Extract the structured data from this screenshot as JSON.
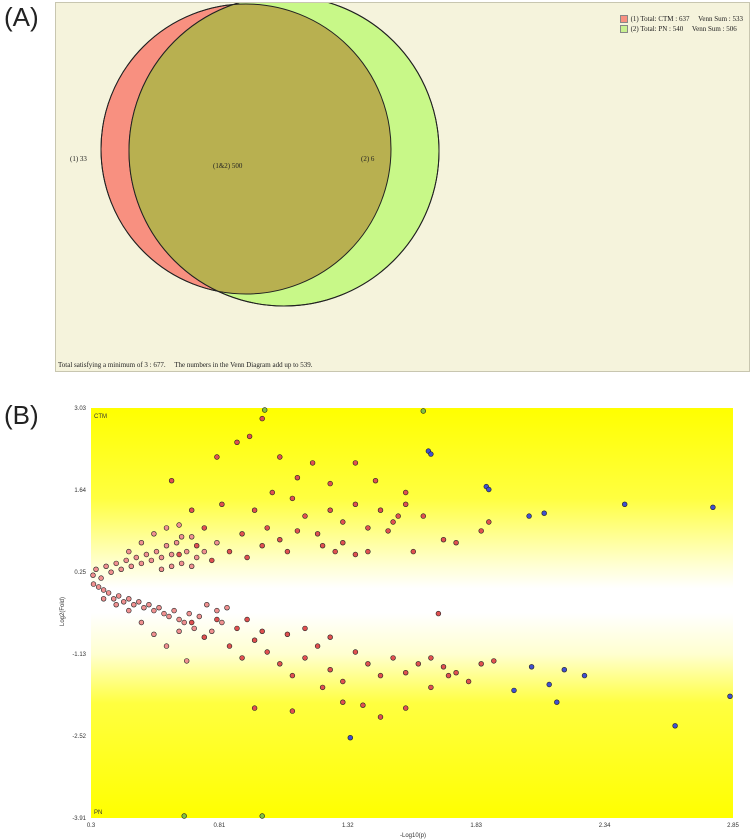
{
  "panel_a": {
    "label": "(A)",
    "legend": [
      {
        "text": "(1) Total: CTM : 637     Venn Sum : 533",
        "color": "#f89080"
      },
      {
        "text": "(2) Total: PN : 540     Venn Sum : 506",
        "color": "#c8f090"
      }
    ],
    "region_labels": {
      "only_1": "(1) 33",
      "both": "(1&2) 500",
      "only_2": "(2) 6"
    },
    "footer": "Total satisfying a minimum of 3 : 677.     The numbers in the Venn Diagram add up to 539.",
    "colors": {
      "set1": "#f89080",
      "set2": "#c8f888",
      "overlap": "#b8b050",
      "background": "#f5f3dc"
    }
  },
  "panel_b": {
    "label": "(B)",
    "top_tag": "CTM",
    "bottom_tag": "PN",
    "colors": {
      "band": "#ffff00",
      "point_red": "#e05050",
      "point_pink": "#f09090",
      "point_blue": "#4050d0",
      "point_green": "#80c040"
    }
  },
  "chart_data": {
    "type": "scatter",
    "title": "",
    "xlabel": "-Log10(p)",
    "ylabel": "Log2(Fold)",
    "xlim": [
      0.3,
      2.85
    ],
    "ylim": [
      -3.91,
      3.03
    ],
    "x_ticks": [
      "0.3",
      "0.81",
      "1.32",
      "1.83",
      "2.34",
      "2.85"
    ],
    "y_ticks": [
      "3.03",
      "1.64",
      "0.25",
      "-1.13",
      "-2.52",
      "-3.91"
    ],
    "series": [
      {
        "color": "#4050d0",
        "points": [
          [
            1.64,
            2.3
          ],
          [
            1.65,
            2.25
          ],
          [
            1.87,
            1.7
          ],
          [
            1.88,
            1.65
          ],
          [
            2.04,
            1.2
          ],
          [
            2.1,
            1.25
          ],
          [
            2.42,
            1.4
          ],
          [
            2.77,
            1.35
          ],
          [
            1.33,
            -2.55
          ],
          [
            1.98,
            -1.75
          ],
          [
            2.05,
            -1.35
          ],
          [
            2.12,
            -1.65
          ],
          [
            2.18,
            -1.4
          ],
          [
            2.26,
            -1.5
          ],
          [
            2.15,
            -1.95
          ],
          [
            2.85,
            -1.85
          ],
          [
            2.62,
            -2.35
          ]
        ]
      },
      {
        "color": "#80c040",
        "points": [
          [
            0.99,
            3.03
          ],
          [
            1.62,
            2.98
          ],
          [
            0.67,
            -3.91
          ],
          [
            0.98,
            -3.91
          ]
        ]
      },
      {
        "color": "#e05050",
        "points": [
          [
            0.62,
            1.8
          ],
          [
            0.8,
            2.2
          ],
          [
            0.88,
            2.45
          ],
          [
            0.93,
            2.55
          ],
          [
            0.98,
            2.85
          ],
          [
            1.05,
            2.2
          ],
          [
            1.12,
            1.85
          ],
          [
            1.18,
            2.1
          ],
          [
            1.25,
            1.75
          ],
          [
            1.35,
            2.1
          ],
          [
            1.43,
            1.8
          ],
          [
            1.55,
            1.6
          ],
          [
            1.62,
            1.2
          ],
          [
            1.58,
            0.6
          ],
          [
            1.7,
            0.8
          ],
          [
            1.75,
            0.75
          ],
          [
            1.85,
            0.95
          ],
          [
            1.88,
            1.1
          ],
          [
            0.7,
            1.3
          ],
          [
            0.75,
            1.0
          ],
          [
            0.82,
            1.4
          ],
          [
            0.9,
            0.9
          ],
          [
            0.95,
            1.3
          ],
          [
            1.0,
            1.0
          ],
          [
            1.05,
            0.8
          ],
          [
            1.1,
            1.5
          ],
          [
            1.15,
            1.2
          ],
          [
            1.2,
            0.9
          ],
          [
            1.25,
            1.3
          ],
          [
            1.3,
            1.1
          ],
          [
            1.35,
            1.4
          ],
          [
            1.4,
            1.0
          ],
          [
            1.45,
            1.3
          ],
          [
            1.5,
            1.1
          ],
          [
            1.55,
            1.4
          ],
          [
            1.27,
            0.6
          ],
          [
            1.35,
            0.55
          ],
          [
            1.4,
            0.6
          ],
          [
            0.65,
            0.55
          ],
          [
            0.72,
            0.7
          ],
          [
            0.78,
            0.45
          ],
          [
            0.85,
            0.6
          ],
          [
            0.92,
            0.5
          ],
          [
            0.98,
            0.7
          ],
          [
            1.02,
            1.6
          ],
          [
            1.08,
            0.6
          ],
          [
            1.12,
            0.95
          ],
          [
            1.22,
            0.7
          ],
          [
            1.3,
            0.75
          ],
          [
            1.48,
            0.95
          ],
          [
            1.52,
            1.2
          ],
          [
            1.68,
            -0.45
          ],
          [
            0.7,
            -0.6
          ],
          [
            0.75,
            -0.85
          ],
          [
            0.8,
            -0.55
          ],
          [
            0.85,
            -1.0
          ],
          [
            0.9,
            -1.2
          ],
          [
            0.95,
            -0.9
          ],
          [
            1.0,
            -1.1
          ],
          [
            1.05,
            -1.3
          ],
          [
            1.1,
            -1.5
          ],
          [
            1.15,
            -1.2
          ],
          [
            1.2,
            -1.0
          ],
          [
            1.25,
            -1.4
          ],
          [
            1.3,
            -1.6
          ],
          [
            1.35,
            -1.1
          ],
          [
            1.4,
            -1.3
          ],
          [
            1.45,
            -1.5
          ],
          [
            1.5,
            -1.2
          ],
          [
            1.55,
            -1.45
          ],
          [
            1.6,
            -1.3
          ],
          [
            1.65,
            -1.2
          ],
          [
            1.7,
            -1.35
          ],
          [
            1.75,
            -1.45
          ],
          [
            1.8,
            -1.6
          ],
          [
            1.85,
            -1.3
          ],
          [
            1.9,
            -1.25
          ],
          [
            0.95,
            -2.05
          ],
          [
            1.1,
            -2.1
          ],
          [
            1.22,
            -1.7
          ],
          [
            1.3,
            -1.95
          ],
          [
            1.38,
            -2.0
          ],
          [
            1.45,
            -2.2
          ],
          [
            1.55,
            -2.05
          ],
          [
            1.65,
            -1.7
          ],
          [
            1.72,
            -1.5
          ],
          [
            0.88,
            -0.7
          ],
          [
            0.92,
            -0.55
          ],
          [
            0.98,
            -0.75
          ],
          [
            1.08,
            -0.8
          ],
          [
            1.15,
            -0.7
          ],
          [
            1.25,
            -0.85
          ]
        ]
      },
      {
        "color": "#f09090",
        "points": [
          [
            0.3,
            0.2
          ],
          [
            0.32,
            0.3
          ],
          [
            0.34,
            0.15
          ],
          [
            0.36,
            0.35
          ],
          [
            0.38,
            0.25
          ],
          [
            0.4,
            0.4
          ],
          [
            0.42,
            0.3
          ],
          [
            0.44,
            0.45
          ],
          [
            0.46,
            0.35
          ],
          [
            0.48,
            0.5
          ],
          [
            0.5,
            0.4
          ],
          [
            0.52,
            0.55
          ],
          [
            0.54,
            0.45
          ],
          [
            0.56,
            0.6
          ],
          [
            0.58,
            0.5
          ],
          [
            0.6,
            0.7
          ],
          [
            0.62,
            0.55
          ],
          [
            0.64,
            0.75
          ],
          [
            0.66,
            0.85
          ],
          [
            0.68,
            0.6
          ],
          [
            0.31,
            0.05
          ],
          [
            0.33,
            0.0
          ],
          [
            0.35,
            -0.05
          ],
          [
            0.37,
            -0.1
          ],
          [
            0.39,
            -0.2
          ],
          [
            0.41,
            -0.15
          ],
          [
            0.43,
            -0.25
          ],
          [
            0.45,
            -0.2
          ],
          [
            0.47,
            -0.3
          ],
          [
            0.49,
            -0.25
          ],
          [
            0.51,
            -0.35
          ],
          [
            0.53,
            -0.3
          ],
          [
            0.55,
            -0.4
          ],
          [
            0.57,
            -0.35
          ],
          [
            0.59,
            -0.45
          ],
          [
            0.61,
            -0.5
          ],
          [
            0.63,
            -0.4
          ],
          [
            0.65,
            -0.55
          ],
          [
            0.67,
            -0.6
          ],
          [
            0.69,
            -0.45
          ],
          [
            0.71,
            -0.7
          ],
          [
            0.73,
            -0.5
          ],
          [
            0.55,
            -0.8
          ],
          [
            0.6,
            -1.0
          ],
          [
            0.65,
            -0.75
          ],
          [
            0.68,
            -1.25
          ],
          [
            0.5,
            -0.6
          ],
          [
            0.45,
            -0.4
          ],
          [
            0.4,
            -0.3
          ],
          [
            0.35,
            -0.2
          ],
          [
            0.45,
            0.6
          ],
          [
            0.5,
            0.75
          ],
          [
            0.55,
            0.9
          ],
          [
            0.6,
            1.0
          ],
          [
            0.65,
            1.05
          ],
          [
            0.7,
            0.85
          ],
          [
            0.75,
            0.6
          ],
          [
            0.8,
            0.75
          ],
          [
            0.58,
            0.3
          ],
          [
            0.62,
            0.35
          ],
          [
            0.66,
            0.4
          ],
          [
            0.7,
            0.35
          ],
          [
            0.72,
            0.5
          ],
          [
            0.76,
            -0.3
          ],
          [
            0.8,
            -0.4
          ],
          [
            0.84,
            -0.35
          ],
          [
            0.78,
            -0.75
          ],
          [
            0.82,
            -0.6
          ]
        ]
      }
    ]
  }
}
